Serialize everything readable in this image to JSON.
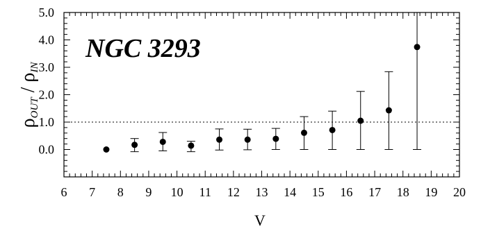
{
  "chart_data": {
    "type": "scatter",
    "title": "",
    "annotation": "NGC 3293",
    "xlabel": "V",
    "ylabel_main": "ρ",
    "ylabel_sub1": "OUT",
    "ylabel_mid": " / ρ",
    "ylabel_sub2": "IN",
    "xlim": [
      6,
      20
    ],
    "ylim": [
      -1.0,
      5.0
    ],
    "x_ticks": [
      6,
      7,
      8,
      9,
      10,
      11,
      12,
      13,
      14,
      15,
      16,
      17,
      18,
      19,
      20
    ],
    "y_ticks": [
      "0.0",
      "1.0",
      "2.0",
      "3.0",
      "4.0",
      "5.0"
    ],
    "reference_line": {
      "y": 1.0,
      "style": "dotted"
    },
    "grid": false,
    "series": [
      {
        "x": [
          7.5,
          8.5,
          9.5,
          10.5,
          11.5,
          12.5,
          13.5,
          14.5,
          15.5,
          16.5,
          17.5,
          18.5
        ],
        "y": [
          0.0,
          0.17,
          0.28,
          0.14,
          0.36,
          0.36,
          0.39,
          0.61,
          0.71,
          1.05,
          1.43,
          3.74
        ],
        "err_low": [
          0.0,
          0.25,
          0.33,
          0.22,
          0.38,
          0.37,
          0.39,
          0.61,
          0.71,
          1.05,
          1.43,
          3.74
        ],
        "err_high": [
          0.0,
          0.23,
          0.34,
          0.16,
          0.39,
          0.38,
          0.38,
          0.59,
          0.69,
          1.07,
          1.41,
          1.5
        ]
      }
    ]
  }
}
